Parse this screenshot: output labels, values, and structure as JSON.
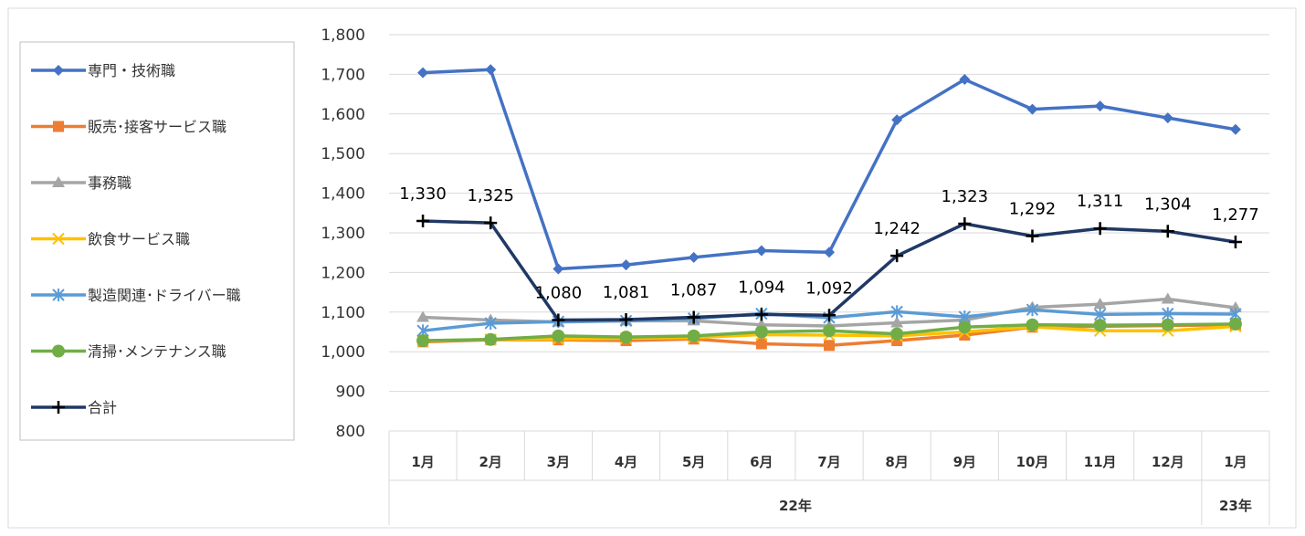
{
  "chart_data": {
    "type": "line",
    "title": "",
    "xlabel": "",
    "ylabel": "",
    "categories": [
      "1月",
      "2月",
      "3月",
      "4月",
      "5月",
      "6月",
      "7月",
      "8月",
      "9月",
      "10月",
      "11月",
      "12月",
      "1月"
    ],
    "year_groups": [
      {
        "label": "22年",
        "span": [
          0,
          11
        ]
      },
      {
        "label": "23年",
        "span": [
          12,
          12
        ]
      }
    ],
    "ylim": [
      800,
      1800
    ],
    "yticks": [
      800,
      900,
      1000,
      1100,
      1200,
      1300,
      1400,
      1500,
      1600,
      1700,
      1800
    ],
    "ytick_labels": [
      "800",
      "900",
      "1,000",
      "1,100",
      "1,200",
      "1,300",
      "1,400",
      "1,500",
      "1,600",
      "1,700",
      "1,800"
    ],
    "grid": "horizontal",
    "legend_position": "left",
    "series": [
      {
        "name": "専門・技術職",
        "color": "#4472C4",
        "marker": "diamond",
        "values": [
          1704,
          1712,
          1209,
          1219,
          1238,
          1255,
          1251,
          1585,
          1687,
          1612,
          1620,
          1590,
          1561
        ]
      },
      {
        "name": "販売･接客サービス職",
        "color": "#ED7D31",
        "marker": "square",
        "values": [
          1025,
          1030,
          1030,
          1028,
          1032,
          1020,
          1016,
          1028,
          1042,
          1062,
          1064,
          1066,
          1068
        ]
      },
      {
        "name": "事務職",
        "color": "#A5A5A5",
        "marker": "triangle",
        "values": [
          1087,
          1080,
          1075,
          1078,
          1078,
          1068,
          1065,
          1073,
          1080,
          1112,
          1120,
          1133,
          1111
        ]
      },
      {
        "name": "飲食サービス職",
        "color": "#FFC000",
        "marker": "x",
        "values": [
          1027,
          1031,
          1032,
          1034,
          1036,
          1043,
          1042,
          1040,
          1050,
          1063,
          1053,
          1053,
          1064
        ]
      },
      {
        "name": "製造関連･ドライバー職",
        "color": "#5B9BD5",
        "marker": "star",
        "values": [
          1053,
          1072,
          1076,
          1078,
          1084,
          1096,
          1086,
          1101,
          1088,
          1106,
          1094,
          1096,
          1095
        ]
      },
      {
        "name": "清掃･メンテナンス職",
        "color": "#70AD47",
        "marker": "circle",
        "values": [
          1028,
          1031,
          1040,
          1037,
          1040,
          1050,
          1053,
          1045,
          1062,
          1068,
          1067,
          1068,
          1070
        ]
      },
      {
        "name": "合計",
        "color": "#203864",
        "marker": "plus",
        "values": [
          1330,
          1325,
          1080,
          1081,
          1087,
          1094,
          1092,
          1242,
          1323,
          1292,
          1311,
          1304,
          1277
        ]
      }
    ],
    "data_labels": {
      "series": "合計",
      "labels": [
        "1,330",
        "1,325",
        "1,080",
        "1,081",
        "1,087",
        "1,094",
        "1,092",
        "1,242",
        "1,323",
        "1,292",
        "1,311",
        "1,304",
        "1,277"
      ]
    }
  }
}
